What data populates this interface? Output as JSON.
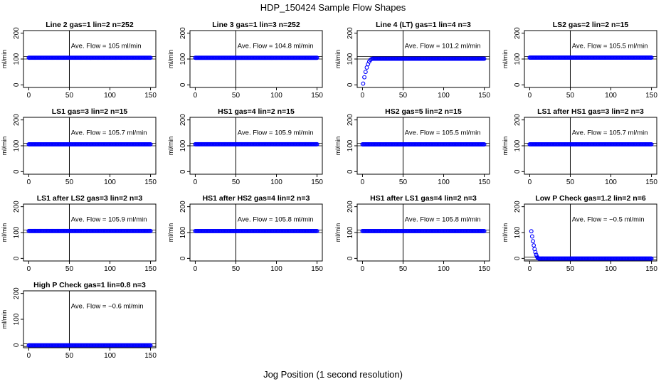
{
  "figure": {
    "title": "HDP_150424  Sample Flow Shapes",
    "xlabel": "Jog Position (1 second resolution)"
  },
  "chart_data": [
    {
      "type": "scatter",
      "title": "Line 2 gas=1 lin=2 n=252",
      "annotation": "Ave. Flow =  105  ml/min",
      "ylabel": "ml/min",
      "xlim": [
        0,
        150
      ],
      "ylim": [
        -10,
        210
      ],
      "x_ticks": [
        0,
        50,
        100,
        150
      ],
      "y_ticks": [
        0,
        100,
        200
      ],
      "vline": 50,
      "ref_lines": [
        100,
        110
      ],
      "series": [
        {
          "shape": "flat",
          "level": 105,
          "x_start": 0,
          "x_end": 150,
          "color": "#0000ff"
        }
      ]
    },
    {
      "type": "scatter",
      "title": "Line 3 gas=1 lin=3 n=252",
      "annotation": "Ave. Flow =  104.8  ml/min",
      "ylabel": "ml/min",
      "xlim": [
        0,
        150
      ],
      "ylim": [
        -10,
        210
      ],
      "x_ticks": [
        0,
        50,
        100,
        150
      ],
      "y_ticks": [
        0,
        100,
        200
      ],
      "vline": 50,
      "ref_lines": [
        100,
        110
      ],
      "series": [
        {
          "shape": "flat",
          "level": 104.8,
          "x_start": 0,
          "x_end": 150,
          "color": "#0000ff"
        }
      ]
    },
    {
      "type": "scatter",
      "title": "Line 4 (LT) gas=1 lin=4 n=3",
      "annotation": "Ave. Flow =  101.2  ml/min",
      "ylabel": "ml/min",
      "xlim": [
        0,
        150
      ],
      "ylim": [
        -10,
        210
      ],
      "x_ticks": [
        0,
        50,
        100,
        150
      ],
      "y_ticks": [
        0,
        100,
        200
      ],
      "vline": 50,
      "ref_lines": [
        100,
        110
      ],
      "series": [
        {
          "shape": "rise",
          "level": 101.2,
          "x_start": 0,
          "x_end": 150,
          "x_transition": 12,
          "start_value": 5,
          "color": "#0000ff"
        }
      ]
    },
    {
      "type": "scatter",
      "title": "LS2 gas=2 lin=2 n=15",
      "annotation": "Ave. Flow =  105.5  ml/min",
      "ylabel": "ml/min",
      "xlim": [
        0,
        150
      ],
      "ylim": [
        -10,
        210
      ],
      "x_ticks": [
        0,
        50,
        100,
        150
      ],
      "y_ticks": [
        0,
        100,
        200
      ],
      "vline": 50,
      "ref_lines": [
        100,
        110
      ],
      "series": [
        {
          "shape": "flat",
          "level": 105.5,
          "x_start": 0,
          "x_end": 150,
          "color": "#0000ff"
        }
      ]
    },
    {
      "type": "scatter",
      "title": "LS1 gas=3 lin=2 n=15",
      "annotation": "Ave. Flow =  105.7  ml/min",
      "ylabel": "ml/min",
      "xlim": [
        0,
        150
      ],
      "ylim": [
        -10,
        210
      ],
      "x_ticks": [
        0,
        50,
        100,
        150
      ],
      "y_ticks": [
        0,
        100,
        200
      ],
      "vline": 50,
      "ref_lines": [
        100,
        110
      ],
      "series": [
        {
          "shape": "flat",
          "level": 105.7,
          "x_start": 0,
          "x_end": 150,
          "color": "#0000ff"
        }
      ]
    },
    {
      "type": "scatter",
      "title": "HS1 gas=4 lin=2 n=15",
      "annotation": "Ave. Flow =  105.9  ml/min",
      "ylabel": "ml/min",
      "xlim": [
        0,
        150
      ],
      "ylim": [
        -10,
        210
      ],
      "x_ticks": [
        0,
        50,
        100,
        150
      ],
      "y_ticks": [
        0,
        100,
        200
      ],
      "vline": 50,
      "ref_lines": [
        100,
        110
      ],
      "series": [
        {
          "shape": "flat",
          "level": 105.9,
          "x_start": 0,
          "x_end": 150,
          "color": "#0000ff"
        }
      ]
    },
    {
      "type": "scatter",
      "title": "HS2 gas=5 lin=2 n=15",
      "annotation": "Ave. Flow =  105.5  ml/min",
      "ylabel": "ml/min",
      "xlim": [
        0,
        150
      ],
      "ylim": [
        -10,
        210
      ],
      "x_ticks": [
        0,
        50,
        100,
        150
      ],
      "y_ticks": [
        0,
        100,
        200
      ],
      "vline": 50,
      "ref_lines": [
        100,
        110
      ],
      "series": [
        {
          "shape": "flat",
          "level": 105.5,
          "x_start": 0,
          "x_end": 150,
          "color": "#0000ff"
        }
      ]
    },
    {
      "type": "scatter",
      "title": "LS1 after HS1 gas=3 lin=2 n=3",
      "annotation": "Ave. Flow =  105.7  ml/min",
      "ylabel": "ml/min",
      "xlim": [
        0,
        150
      ],
      "ylim": [
        -10,
        210
      ],
      "x_ticks": [
        0,
        50,
        100,
        150
      ],
      "y_ticks": [
        0,
        100,
        200
      ],
      "vline": 50,
      "ref_lines": [
        100,
        110
      ],
      "series": [
        {
          "shape": "flat",
          "level": 105.7,
          "x_start": 0,
          "x_end": 150,
          "color": "#0000ff"
        }
      ]
    },
    {
      "type": "scatter",
      "title": "LS1 after LS2 gas=3 lin=2 n=3",
      "annotation": "Ave. Flow =  105.9  ml/min",
      "ylabel": "ml/min",
      "xlim": [
        0,
        150
      ],
      "ylim": [
        -10,
        210
      ],
      "x_ticks": [
        0,
        50,
        100,
        150
      ],
      "y_ticks": [
        0,
        100,
        200
      ],
      "vline": 50,
      "ref_lines": [
        100,
        110
      ],
      "series": [
        {
          "shape": "flat",
          "level": 105.9,
          "x_start": 0,
          "x_end": 150,
          "color": "#0000ff"
        }
      ]
    },
    {
      "type": "scatter",
      "title": "HS1 after HS2 gas=4 lin=2 n=3",
      "annotation": "Ave. Flow =  105.8  ml/min",
      "ylabel": "ml/min",
      "xlim": [
        0,
        150
      ],
      "ylim": [
        -10,
        210
      ],
      "x_ticks": [
        0,
        50,
        100,
        150
      ],
      "y_ticks": [
        0,
        100,
        200
      ],
      "vline": 50,
      "ref_lines": [
        100,
        110
      ],
      "series": [
        {
          "shape": "flat",
          "level": 105.8,
          "x_start": 0,
          "x_end": 150,
          "color": "#0000ff"
        }
      ]
    },
    {
      "type": "scatter",
      "title": "HS1 after LS1 gas=4 lin=2 n=3",
      "annotation": "Ave. Flow =  105.8  ml/min",
      "ylabel": "ml/min",
      "xlim": [
        0,
        150
      ],
      "ylim": [
        -10,
        210
      ],
      "x_ticks": [
        0,
        50,
        100,
        150
      ],
      "y_ticks": [
        0,
        100,
        200
      ],
      "vline": 50,
      "ref_lines": [
        100,
        110
      ],
      "series": [
        {
          "shape": "flat",
          "level": 105.8,
          "x_start": 0,
          "x_end": 150,
          "color": "#0000ff"
        }
      ]
    },
    {
      "type": "scatter",
      "title": "Low P Check gas=1.2 lin=2 n=6",
      "annotation": "Ave. Flow =  −0.5  ml/min",
      "ylabel": "ml/min",
      "xlim": [
        0,
        150
      ],
      "ylim": [
        -10,
        210
      ],
      "x_ticks": [
        0,
        50,
        100,
        150
      ],
      "y_ticks": [
        0,
        100,
        200
      ],
      "vline": 50,
      "ref_lines": [
        -5,
        5
      ],
      "series": [
        {
          "shape": "decay",
          "level": -0.5,
          "x_start": 2,
          "x_end": 150,
          "x_transition": 11,
          "start_value": 105,
          "color": "#0000ff"
        }
      ]
    },
    {
      "type": "scatter",
      "title": "High P Check gas=1 lin=0.8 n=3",
      "annotation": "Ave. Flow =  −0.6  ml/min",
      "ylabel": "ml/min",
      "xlim": [
        0,
        150
      ],
      "ylim": [
        -10,
        210
      ],
      "x_ticks": [
        0,
        50,
        100,
        150
      ],
      "y_ticks": [
        0,
        100,
        200
      ],
      "vline": 50,
      "ref_lines": [
        -5,
        5
      ],
      "series": [
        {
          "shape": "flat",
          "level": -0.6,
          "x_start": 0,
          "x_end": 150,
          "color": "#0000ff"
        }
      ]
    }
  ]
}
